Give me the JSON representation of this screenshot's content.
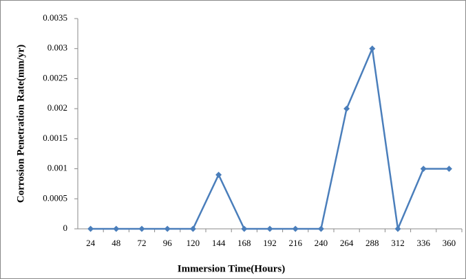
{
  "chart_data": {
    "type": "line",
    "x_label": "Immersion Time(Hours)",
    "y_label": "Corrosion Penetration Rate(mm/yr)",
    "categories": [
      "24",
      "48",
      "72",
      "96",
      "120",
      "144",
      "168",
      "192",
      "216",
      "240",
      "264",
      "288",
      "312",
      "336",
      "360"
    ],
    "series": [
      {
        "color": "#4a7ebb",
        "values": [
          0,
          0,
          0,
          0,
          0,
          0.0009,
          0,
          0,
          0,
          0,
          0.002,
          0.003,
          0,
          0.001,
          0.001
        ]
      }
    ],
    "ylim": [
      0,
      0.0035
    ],
    "yticks": [
      0,
      0.0005,
      0.001,
      0.0015,
      0.002,
      0.0025,
      0.003,
      0.0035
    ],
    "grid": false
  }
}
